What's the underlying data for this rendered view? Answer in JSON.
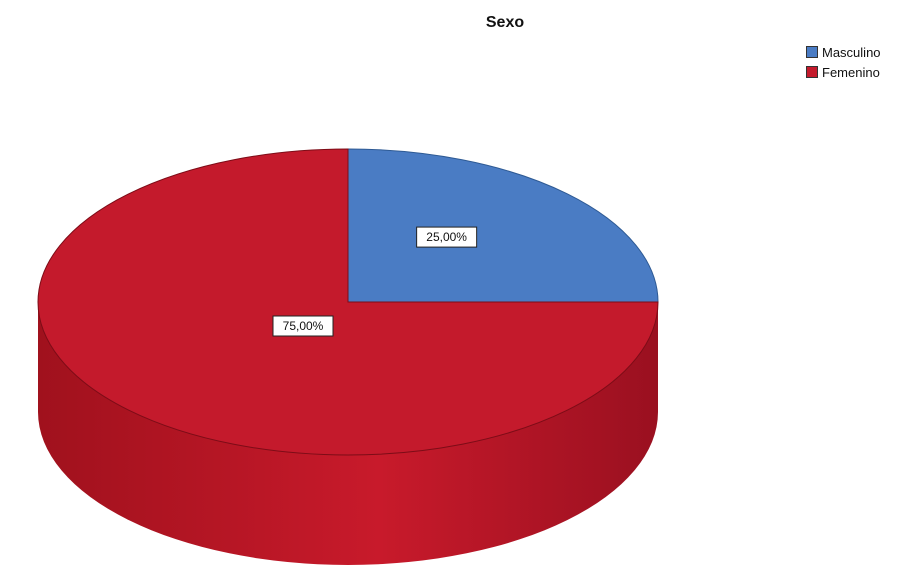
{
  "chart_data": {
    "type": "pie",
    "title": "Sexo",
    "categories": [
      "Masculino",
      "Femenino"
    ],
    "values": [
      25,
      75
    ],
    "data_labels": [
      "25,00%",
      "75,00%"
    ],
    "colors": [
      "#4a7cc4",
      "#c41a2c"
    ],
    "legend_position": "top-right"
  }
}
